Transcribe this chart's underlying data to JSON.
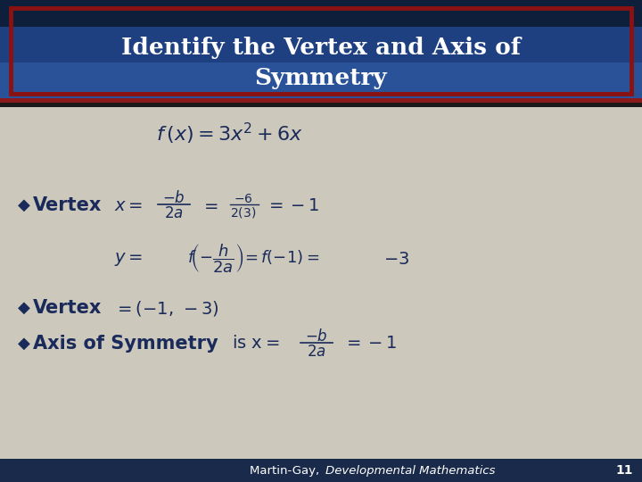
{
  "bg_color": "#ccc8bb",
  "header_blue_dark": "#1a3a6a",
  "header_blue_mid": "#2a5090",
  "header_blue_light": "#4a70b0",
  "header_border_color": "#7a1010",
  "header_text_color": "#ffffff",
  "body_text_color": "#1a2a5a",
  "footer_bg": "#1a2a4a",
  "title_line1": "Identify the Vertex and Axis of",
  "title_line2": "Symmetry",
  "footer_num": "11"
}
